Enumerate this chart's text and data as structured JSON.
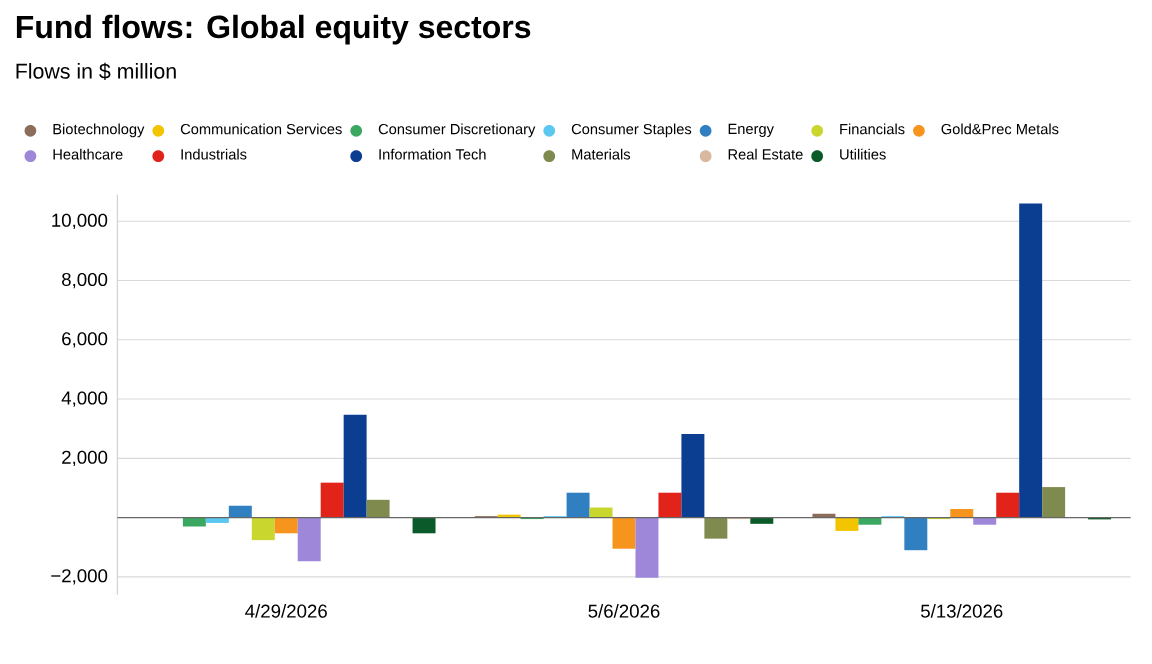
{
  "chart_data": {
    "type": "bar",
    "title": "Fund flows: Global equity sectors",
    "subtitle": "Flows in $ million",
    "categories": [
      "4/29/2026",
      "5/6/2026",
      "5/13/2026"
    ],
    "series": [
      {
        "name": "Biotechnology",
        "color": "#8c6d5a",
        "values": [
          0,
          50,
          130
        ]
      },
      {
        "name": "Communication Services",
        "color": "#f2c500",
        "values": [
          0,
          100,
          -450
        ]
      },
      {
        "name": "Consumer Discretionary",
        "color": "#3aa860",
        "values": [
          -300,
          -50,
          -240
        ]
      },
      {
        "name": "Consumer Staples",
        "color": "#5bc8f0",
        "values": [
          -180,
          50,
          50
        ]
      },
      {
        "name": "Energy",
        "color": "#2f7fc1",
        "values": [
          400,
          840,
          -1100
        ]
      },
      {
        "name": "Financials",
        "color": "#c8d62e",
        "values": [
          -760,
          340,
          -50
        ]
      },
      {
        "name": "Gold&Prec Metals",
        "color": "#f7941d",
        "values": [
          -530,
          -1050,
          290
        ]
      },
      {
        "name": "Healthcare",
        "color": "#9e86d8",
        "values": [
          -1470,
          -2030,
          -240
        ]
      },
      {
        "name": "Industrials",
        "color": "#e2231a",
        "values": [
          1180,
          840,
          840
        ]
      },
      {
        "name": "Information Tech",
        "color": "#0b3d91",
        "values": [
          3470,
          2820,
          10600
        ]
      },
      {
        "name": "Materials",
        "color": "#7f8a4f",
        "values": [
          600,
          -710,
          1030
        ]
      },
      {
        "name": "Real Estate",
        "color": "#d9b8a0",
        "values": [
          0,
          -50,
          0
        ]
      },
      {
        "name": "Utilities",
        "color": "#0a5a2a",
        "values": [
          -530,
          -210,
          -60
        ]
      }
    ],
    "ylim": [
      -2600,
      10900
    ],
    "yticks": [
      {
        "value": -2000,
        "label": "−2,000"
      },
      {
        "value": 2000,
        "label": "2,000"
      },
      {
        "value": 4000,
        "label": "4,000"
      },
      {
        "value": 6000,
        "label": "6,000"
      },
      {
        "value": 8000,
        "label": "8,000"
      },
      {
        "value": 10000,
        "label": "10,000"
      }
    ],
    "grid": "y",
    "legend": "top"
  }
}
